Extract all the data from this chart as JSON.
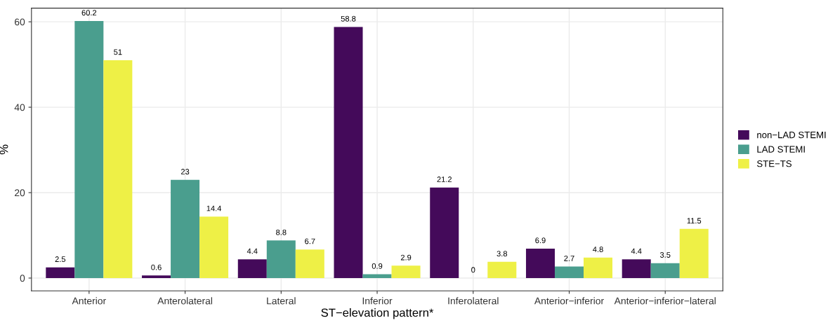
{
  "chart_data": {
    "type": "bar",
    "xlabel": "ST−elevation pattern*",
    "ylabel": "%",
    "categories": [
      "Anterior",
      "Anterolateral",
      "Lateral",
      "Inferior",
      "Inferolateral",
      "Anterior−inferior",
      "Anterior−inferior−lateral"
    ],
    "series": [
      {
        "name": "non−LAD STEMI",
        "color": "#440a5a",
        "values": [
          2.5,
          0.6,
          4.4,
          58.8,
          21.2,
          6.9,
          4.4
        ]
      },
      {
        "name": "LAD STEMI",
        "color": "#4a9e8e",
        "values": [
          60.2,
          23,
          8.8,
          0.9,
          0,
          2.7,
          3.5
        ]
      },
      {
        "name": "STE−TS",
        "color": "#eef046",
        "values": [
          51,
          14.4,
          6.7,
          2.9,
          3.8,
          4.8,
          11.5
        ]
      }
    ],
    "ylim": [
      -3.0,
      63.2
    ],
    "yticks": [
      0,
      20,
      40,
      60
    ],
    "grid": true,
    "legend": "right",
    "data_labels": true
  }
}
